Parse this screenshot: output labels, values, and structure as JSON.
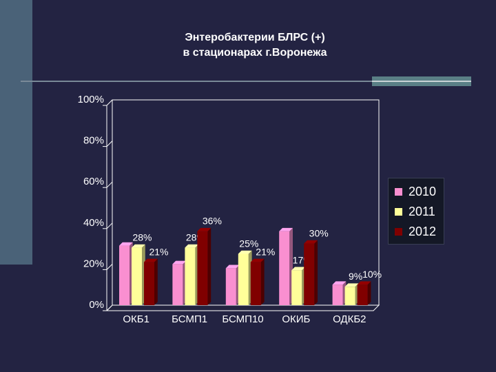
{
  "slide": {
    "title_line1": "Энтеробактерии БЛРС (+)",
    "title_line2": "в стационарах г.Воронежа"
  },
  "chart_data": {
    "type": "bar",
    "title": "",
    "xlabel": "",
    "ylabel": "",
    "ylim": [
      0,
      100
    ],
    "y_ticks": [
      "0%",
      "20%",
      "40%",
      "60%",
      "80%",
      "100%"
    ],
    "categories": [
      "ОКБ1",
      "БСМП1",
      "БСМП10",
      "ОКИБ",
      "ОДКБ2"
    ],
    "series": [
      {
        "name": "2010",
        "color": "#f98fd0",
        "values": [
          29,
          20,
          18,
          36,
          10
        ]
      },
      {
        "name": "2011",
        "color": "#ffff99",
        "values": [
          28,
          28,
          25,
          17,
          9
        ],
        "labels": [
          "28%",
          "28%",
          "25%",
          "17%",
          "9%"
        ]
      },
      {
        "name": "2012",
        "color": "#800000",
        "values": [
          21,
          36,
          21,
          30,
          10
        ],
        "labels": [
          "21%",
          "36%",
          "21%",
          "30%",
          "10%"
        ]
      }
    ],
    "grid": false,
    "legend_position": "right"
  }
}
